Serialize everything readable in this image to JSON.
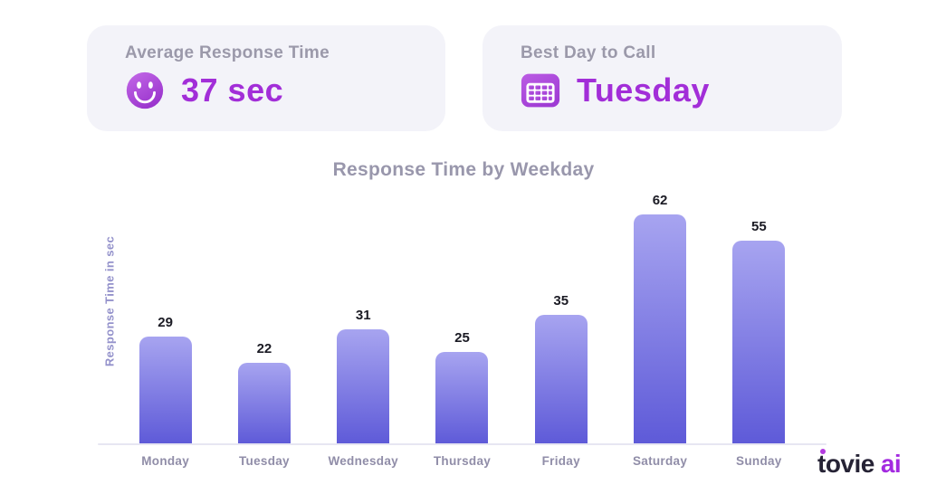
{
  "stat_cards": [
    {
      "label": "Average Response Time",
      "value": "37 sec",
      "icon": "smiley-icon"
    },
    {
      "label": "Best Day to Call",
      "value": "Tuesday",
      "icon": "calendar-icon"
    }
  ],
  "chart_data": {
    "type": "bar",
    "title": "Response Time by Weekday",
    "xlabel": "",
    "ylabel": "Response Time in sec",
    "categories": [
      "Monday",
      "Tuesday",
      "Wednesday",
      "Thursday",
      "Friday",
      "Saturday",
      "Sunday"
    ],
    "values": [
      29,
      22,
      31,
      25,
      35,
      62,
      55
    ],
    "ylim": [
      0,
      62
    ],
    "grid": false,
    "legend": false,
    "bar_color_top": "#a7a4f0",
    "bar_color_bottom": "#5e5ad8"
  },
  "logo": {
    "name": "tovie",
    "suffix": "ai"
  },
  "colors": {
    "accent_purple": "#a22ed8",
    "card_background": "#f3f3f9",
    "card_label_gray": "#9b99aa",
    "title_gray": "#9997ac",
    "axis_label_gray": "#908da8",
    "y_label_periwinkle": "#9492cb",
    "value_text": "#1b1b24",
    "axis_line": "#e7e6f2"
  }
}
